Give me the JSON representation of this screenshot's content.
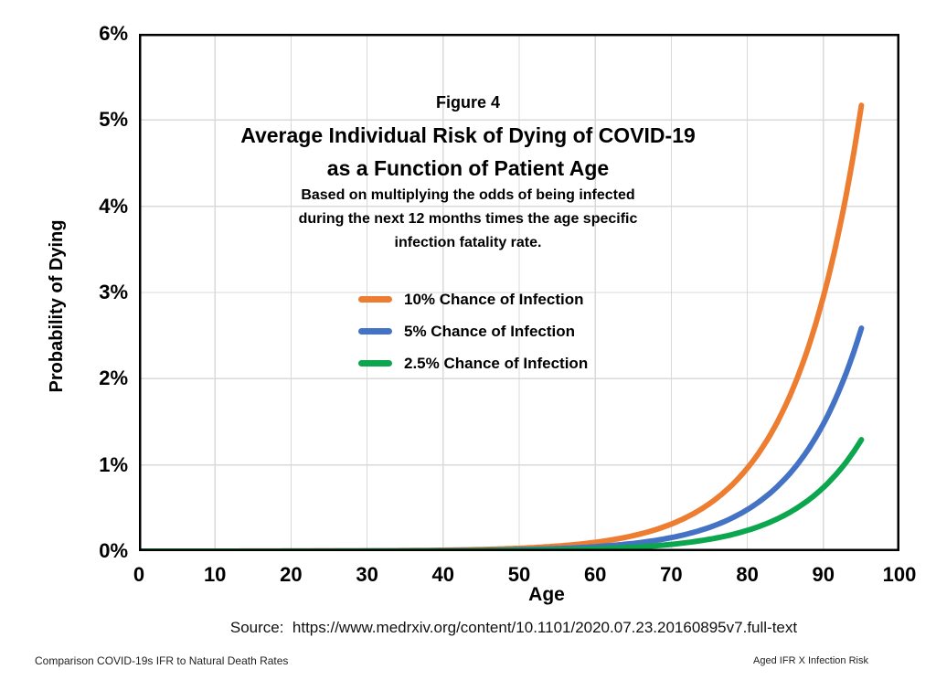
{
  "titles": {
    "figure_label": "Figure 4",
    "title_line1": "Average Individual Risk of Dying of COVID-19",
    "title_line2": "as a Function of Patient Age",
    "subtitle_line1": "Based on multiplying the odds of being infected",
    "subtitle_line2": "during the next 12 months times the age specific",
    "subtitle_line3": "infection fatality rate."
  },
  "source_line": "Source:  https://www.medrxiv.org/content/10.1101/2020.07.23.20160895v7.full-text",
  "footer": {
    "left": "Comparison COVID-19s IFR to Natural Death Rates",
    "right": "Aged IFR X Infection Risk"
  },
  "chart_data": {
    "type": "line",
    "title": "Figure 4 — Average Individual Risk of Dying of COVID-19 as a Function of Patient Age",
    "xlabel": "Age",
    "ylabel": "Probability of Dying",
    "xlim": [
      0,
      100
    ],
    "ylim": [
      0,
      6
    ],
    "grid": true,
    "grid_color": "#D9D9D9",
    "border_color": "#000000",
    "legend_position": "inside-left-center",
    "x_ticks": [
      {
        "value": 0,
        "label": "0"
      },
      {
        "value": 10,
        "label": "10"
      },
      {
        "value": 20,
        "label": "20"
      },
      {
        "value": 30,
        "label": "30"
      },
      {
        "value": 40,
        "label": "40"
      },
      {
        "value": 50,
        "label": "50"
      },
      {
        "value": 60,
        "label": "60"
      },
      {
        "value": 70,
        "label": "70"
      },
      {
        "value": 80,
        "label": "80"
      },
      {
        "value": 90,
        "label": "90"
      },
      {
        "value": 100,
        "label": "100"
      }
    ],
    "y_ticks": [
      {
        "value": 0,
        "label": "0%"
      },
      {
        "value": 1,
        "label": "1%"
      },
      {
        "value": 2,
        "label": "2%"
      },
      {
        "value": 3,
        "label": "3%"
      },
      {
        "value": 4,
        "label": "4%"
      },
      {
        "value": 5,
        "label": "5%"
      },
      {
        "value": 6,
        "label": "6%"
      }
    ],
    "x": [
      0,
      5,
      10,
      15,
      20,
      25,
      30,
      35,
      40,
      45,
      50,
      55,
      60,
      65,
      70,
      75,
      80,
      85,
      90,
      95
    ],
    "series": [
      {
        "name": "10% Chance of Infection",
        "color": "#ED7D31",
        "values": [
          0.00012,
          0.00022,
          0.00038,
          0.00066,
          0.0012,
          0.002,
          0.0035,
          0.0062,
          0.0109,
          0.019,
          0.0333,
          0.0584,
          0.1023,
          0.1791,
          0.3137,
          0.5494,
          0.9623,
          1.6853,
          2.9517,
          5.17
        ]
      },
      {
        "name": "5% Chance of Infection",
        "color": "#4472C4",
        "values": [
          6e-05,
          0.00011,
          0.00019,
          0.00033,
          0.0006,
          0.001,
          0.00175,
          0.0031,
          0.00545,
          0.0095,
          0.01665,
          0.0292,
          0.05115,
          0.08955,
          0.15685,
          0.2747,
          0.48115,
          0.84265,
          1.47585,
          2.585
        ]
      },
      {
        "name": "2.5% Chance of Infection",
        "color": "#0CA64F",
        "values": [
          3e-05,
          5.5e-05,
          9.5e-05,
          0.000165,
          0.0003,
          0.0005,
          0.000875,
          0.00155,
          0.002725,
          0.00475,
          0.008325,
          0.0146,
          0.025575,
          0.044775,
          0.078425,
          0.13735,
          0.240575,
          0.421325,
          0.737925,
          1.2925
        ]
      }
    ]
  }
}
